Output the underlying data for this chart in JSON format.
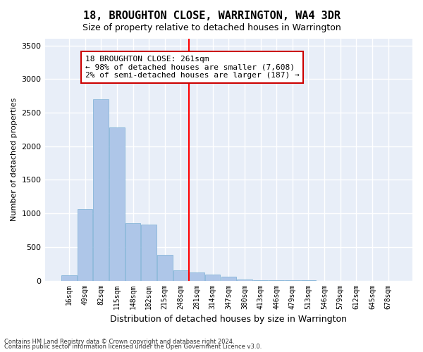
{
  "title": "18, BROUGHTON CLOSE, WARRINGTON, WA4 3DR",
  "subtitle": "Size of property relative to detached houses in Warrington",
  "xlabel": "Distribution of detached houses by size in Warrington",
  "ylabel": "Number of detached properties",
  "categories": [
    "16sqm",
    "49sqm",
    "82sqm",
    "115sqm",
    "148sqm",
    "182sqm",
    "215sqm",
    "248sqm",
    "281sqm",
    "314sqm",
    "347sqm",
    "380sqm",
    "413sqm",
    "446sqm",
    "479sqm",
    "513sqm",
    "546sqm",
    "579sqm",
    "612sqm",
    "645sqm",
    "678sqm"
  ],
  "values": [
    80,
    1060,
    2700,
    2280,
    855,
    830,
    380,
    155,
    120,
    90,
    55,
    18,
    5,
    3,
    2,
    1,
    0,
    0,
    0,
    0,
    0
  ],
  "bar_color": "#aec6e8",
  "bar_edge_color": "#7aafd4",
  "ylim": [
    0,
    3600
  ],
  "yticks": [
    0,
    500,
    1000,
    1500,
    2000,
    2500,
    3000,
    3500
  ],
  "red_line_index": 8,
  "annotation_text": "18 BROUGHTON CLOSE: 261sqm\n← 98% of detached houses are smaller (7,608)\n2% of semi-detached houses are larger (187) →",
  "annotation_box_color": "#ffffff",
  "annotation_box_edge": "#cc0000",
  "footnote1": "Contains HM Land Registry data © Crown copyright and database right 2024.",
  "footnote2": "Contains public sector information licensed under the Open Government Licence v3.0.",
  "bg_color": "#e8eef8",
  "grid_color": "#ffffff",
  "title_fontsize": 11,
  "subtitle_fontsize": 9
}
